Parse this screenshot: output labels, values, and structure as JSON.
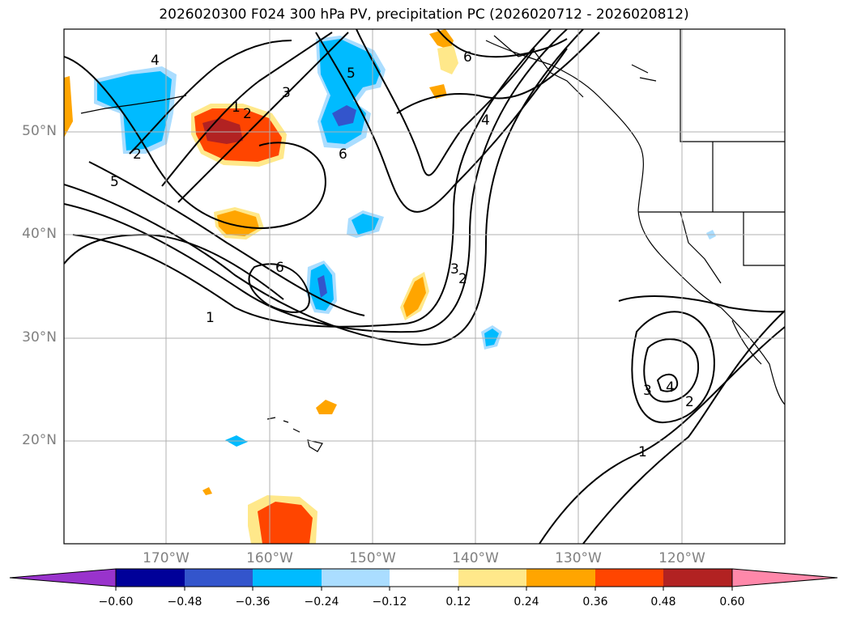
{
  "title": "2026020300 F024 300 hPa PV, precipitation PC (2026020712 - 2026020812)",
  "lat_labels": [
    "50°N",
    "40°N",
    "30°N",
    "20°N"
  ],
  "lon_labels": [
    "170°W",
    "160°W",
    "150°W",
    "140°W",
    "130°W",
    "120°W"
  ],
  "contour_labels": [
    "4",
    "3",
    "5",
    "2",
    "1",
    "2",
    "5",
    "6",
    "6",
    "4",
    "3",
    "2",
    "1",
    "6",
    "4",
    "3",
    "2",
    "1"
  ],
  "colorbar": {
    "ticks": [
      "−0.60",
      "−0.48",
      "−0.36",
      "−0.24",
      "−0.12",
      "0.12",
      "0.24",
      "0.36",
      "0.48",
      "0.60"
    ],
    "colors": [
      "#9933cc",
      "#000099",
      "#3355cc",
      "#00bbff",
      "#aaddff",
      "#ffffff",
      "#ffe88a",
      "#ffa500",
      "#ff4500",
      "#b22222",
      "#ff88aa"
    ]
  }
}
